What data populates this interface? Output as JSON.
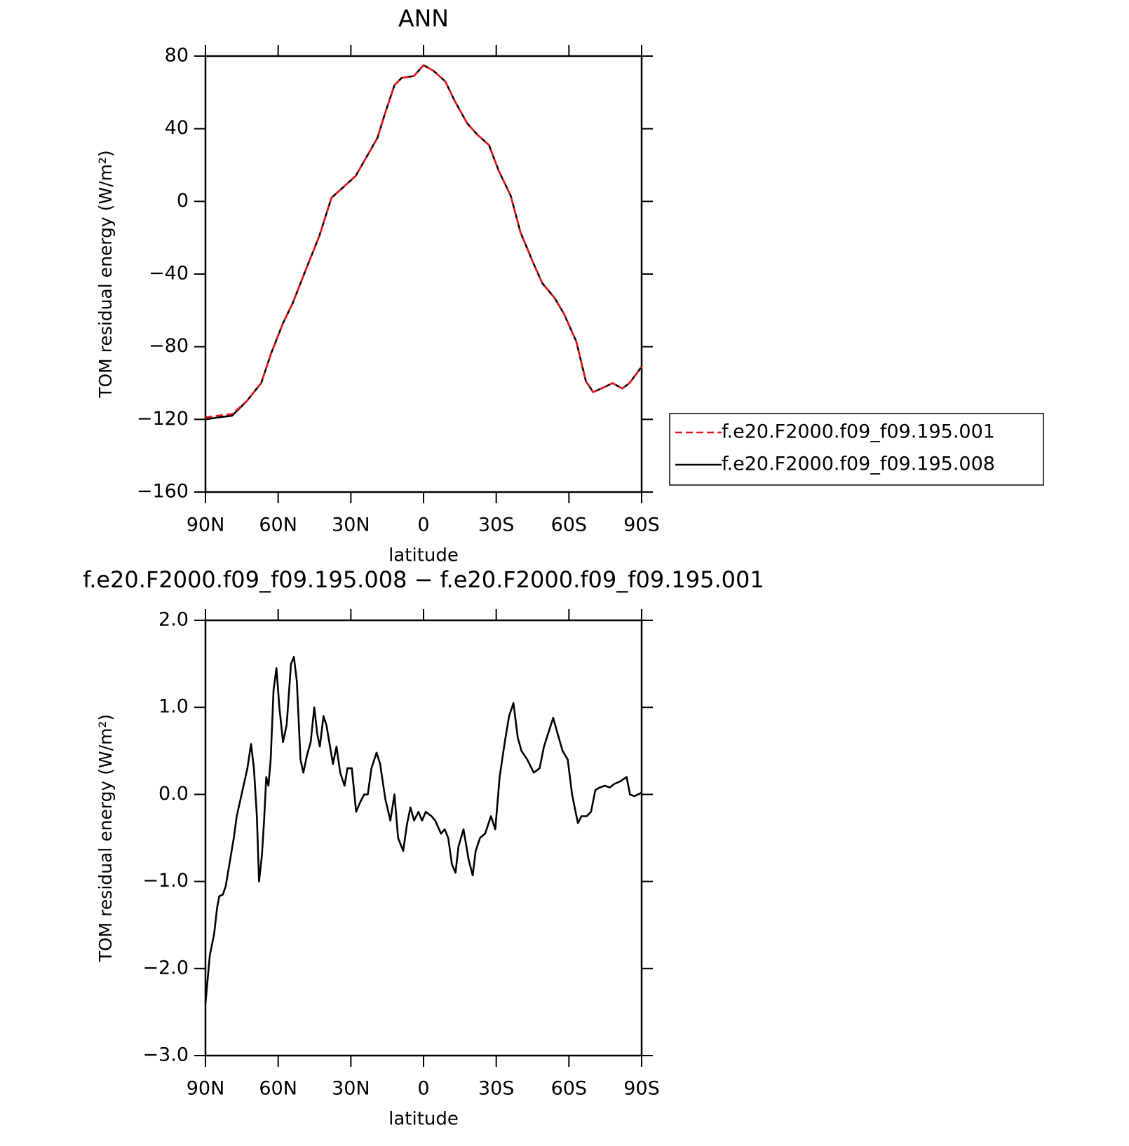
{
  "chart_data": [
    {
      "type": "line",
      "title": "ANN",
      "xlabel": "latitude",
      "ylabel": "TOM residual energy (W/m²)",
      "xlim": [
        90,
        -90
      ],
      "xticks": [
        {
          "value": 90,
          "label": "90N"
        },
        {
          "value": 60,
          "label": "60N"
        },
        {
          "value": 30,
          "label": "30N"
        },
        0,
        {
          "value": -30,
          "label": "30S"
        },
        {
          "value": -60,
          "label": "60S"
        },
        {
          "value": -90,
          "label": "90S"
        }
      ],
      "ylim": [
        -160,
        80
      ],
      "yticks": [
        80,
        40,
        0,
        {
          "value": -40,
          "label": "−40"
        },
        {
          "value": -80,
          "label": "−80"
        },
        {
          "value": -120,
          "label": "−120"
        },
        {
          "value": -160,
          "label": "−160"
        }
      ],
      "legend": "right",
      "x": [
        90,
        85,
        79,
        73,
        67,
        63,
        58,
        54,
        49,
        43,
        38,
        33,
        28,
        25,
        19,
        16,
        12,
        9,
        4,
        0,
        -4,
        -9,
        -13,
        -18,
        -22,
        -27,
        -31,
        -36,
        -40,
        -45,
        -49,
        -54,
        -58,
        -63,
        -67,
        -70,
        -75,
        -78,
        -82,
        -85,
        -90
      ],
      "series": [
        {
          "name": "f.e20.F2000.f09_f09.195.001",
          "color": "#e8141c",
          "line_style": "dashed",
          "values": [
            -119,
            -118,
            -117,
            -110,
            -100,
            -84,
            -67,
            -56,
            -39,
            -19,
            2,
            8,
            14,
            21,
            35,
            48,
            64,
            68,
            69,
            75,
            72,
            66,
            55,
            43,
            37,
            31,
            17,
            3,
            -17,
            -33,
            -45,
            -53,
            -62,
            -77,
            -99,
            -105,
            -102,
            -100,
            -103,
            -100,
            -91
          ]
        },
        {
          "name": "f.e20.F2000.f09_f09.195.008",
          "color": "#000000",
          "line_style": "solid",
          "values": [
            -120,
            -119,
            -118,
            -110,
            -100,
            -84,
            -67,
            -56,
            -39,
            -19,
            2,
            8,
            14,
            21,
            35,
            48,
            64,
            68,
            69,
            75,
            72,
            66,
            55,
            43,
            37,
            31,
            17,
            3,
            -17,
            -33,
            -45,
            -53,
            -62,
            -77,
            -99,
            -105,
            -102,
            -100,
            -103,
            -100,
            -91
          ]
        }
      ]
    },
    {
      "type": "line",
      "title": "f.e20.F2000.f09_f09.195.008 − f.e20.F2000.f09_f09.195.001",
      "xlabel": "latitude",
      "ylabel": "TOM residual energy (W/m²)",
      "xlim": [
        90,
        -90
      ],
      "xticks": [
        {
          "value": 90,
          "label": "90N"
        },
        {
          "value": 60,
          "label": "60N"
        },
        {
          "value": 30,
          "label": "30N"
        },
        0,
        {
          "value": -30,
          "label": "30S"
        },
        {
          "value": -60,
          "label": "60S"
        },
        {
          "value": -90,
          "label": "90S"
        }
      ],
      "ylim": [
        -3,
        2
      ],
      "yticks": [
        {
          "value": 2,
          "label": "2.0"
        },
        {
          "value": 1,
          "label": "1.0"
        },
        {
          "value": 0,
          "label": "0.0"
        },
        {
          "value": -1,
          "label": "−1.0"
        },
        {
          "value": -2,
          "label": "−2.0"
        },
        {
          "value": -3,
          "label": "−3.0"
        }
      ],
      "x": [
        90,
        88.2,
        86.4,
        85.2,
        84.3,
        82.8,
        81.6,
        79.8,
        78.3,
        77.1,
        74.7,
        72.7,
        71.2,
        70.0,
        68.8,
        67.9,
        66.7,
        65.8,
        64.9,
        64.0,
        63.1,
        61.9,
        60.7,
        59.5,
        58.0,
        56.5,
        54.7,
        53.5,
        52.3,
        50.8,
        49.6,
        48.1,
        46.6,
        45.1,
        43.9,
        42.8,
        41.3,
        40.1,
        38.9,
        37.4,
        35.9,
        34.4,
        32.6,
        31.4,
        29.6,
        27.8,
        26.3,
        24.5,
        23.0,
        21.5,
        19.4,
        17.9,
        15.8,
        13.7,
        12.0,
        10.5,
        8.4,
        6.9,
        5.4,
        3.9,
        2.1,
        0.6,
        -0.9,
        -3.3,
        -4.8,
        -7.2,
        -8.7,
        -10.2,
        -11.7,
        -13.2,
        -14.4,
        -16.5,
        -18.6,
        -20.3,
        -21.5,
        -23.3,
        -25.4,
        -27.8,
        -29.6,
        -31.4,
        -33.5,
        -35.3,
        -37.1,
        -38.9,
        -40.4,
        -42.8,
        -45.5,
        -47.9,
        -49.7,
        -52.0,
        -53.5,
        -55.3,
        -57.4,
        -59.5,
        -61.3,
        -63.7,
        -65.2,
        -67.3,
        -69.1,
        -70.9,
        -72.7,
        -74.8,
        -76.9,
        -78.7,
        -81.1,
        -83.8,
        -85.2,
        -87.0,
        -90
      ],
      "series": [
        {
          "color": "#000000",
          "line_style": "solid",
          "values": [
            -2.4,
            -1.85,
            -1.6,
            -1.3,
            -1.17,
            -1.15,
            -1.05,
            -0.75,
            -0.5,
            -0.25,
            0.05,
            0.3,
            0.58,
            0.3,
            -0.25,
            -1.0,
            -0.7,
            -0.3,
            0.2,
            0.1,
            0.4,
            1.2,
            1.45,
            1.0,
            0.6,
            0.8,
            1.5,
            1.58,
            1.3,
            0.4,
            0.25,
            0.45,
            0.6,
            1.0,
            0.7,
            0.55,
            0.9,
            0.8,
            0.6,
            0.35,
            0.55,
            0.25,
            0.1,
            0.3,
            0.3,
            -0.2,
            -0.1,
            0.0,
            0.0,
            0.3,
            0.48,
            0.35,
            -0.05,
            -0.3,
            0.0,
            -0.5,
            -0.65,
            -0.35,
            -0.15,
            -0.3,
            -0.2,
            -0.3,
            -0.2,
            -0.25,
            -0.3,
            -0.45,
            -0.4,
            -0.5,
            -0.8,
            -0.9,
            -0.6,
            -0.4,
            -0.75,
            -0.93,
            -0.65,
            -0.5,
            -0.45,
            -0.25,
            -0.4,
            0.2,
            0.6,
            0.9,
            1.05,
            0.65,
            0.5,
            0.4,
            0.25,
            0.3,
            0.55,
            0.75,
            0.88,
            0.7,
            0.5,
            0.4,
            0.0,
            -0.33,
            -0.25,
            -0.25,
            -0.2,
            0.05,
            0.08,
            0.1,
            0.08,
            0.12,
            0.15,
            0.2,
            0.0,
            -0.02,
            0.02
          ]
        }
      ]
    }
  ]
}
